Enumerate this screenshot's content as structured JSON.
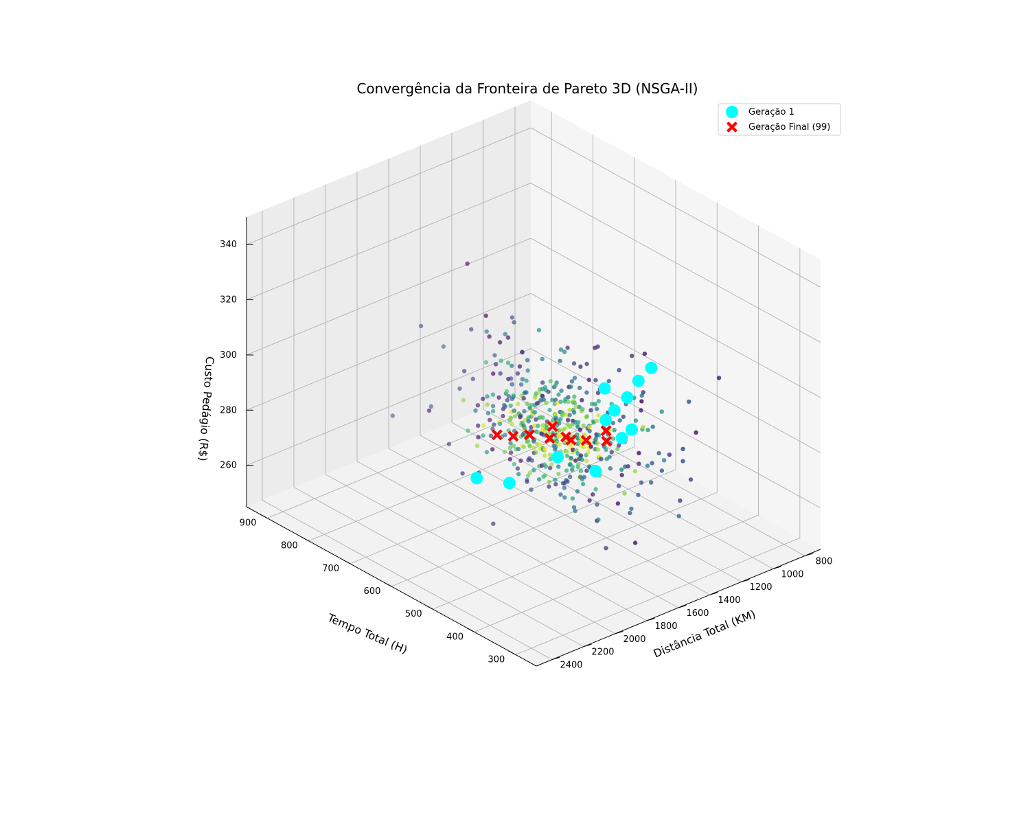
{
  "chart_data": {
    "type": "scatter",
    "projection": "3d",
    "title": "Convergência da Fronteira de Pareto 3D (NSGA-II)",
    "xlabel": "Distância Total (KM)",
    "ylabel": "Tempo Total (H)",
    "zlabel": "Custo Pedágio (R$)",
    "xlim": [
      700,
      2500
    ],
    "ylim": [
      250,
      950
    ],
    "zlim": [
      245,
      350
    ],
    "x_ticks": [
      "800",
      "1000",
      "1200",
      "1400",
      "1600",
      "1800",
      "2000",
      "2200",
      "2400"
    ],
    "y_ticks": [
      "300",
      "400",
      "500",
      "600",
      "700",
      "800",
      "900"
    ],
    "z_ticks": [
      "260",
      "280",
      "300",
      "320",
      "340"
    ],
    "grid": true,
    "legend": {
      "placement": "top-right",
      "entries": [
        "Geração 1",
        "Geração Final (99)"
      ]
    },
    "intermediate_generations": {
      "count": 520,
      "colormap": "viridis",
      "seed": 42,
      "x_center": 1550,
      "x_spread": 280,
      "y_center": 560,
      "y_spread": 110,
      "z_center": 281,
      "z_spread": 14
    },
    "series": [
      {
        "name": "Geração 1",
        "color": "#00ffff",
        "marker": "circle",
        "points": [
          {
            "x": 1300,
            "y": 430,
            "z": 310
          },
          {
            "x": 1400,
            "y": 450,
            "z": 300
          },
          {
            "x": 1250,
            "y": 480,
            "z": 300
          },
          {
            "x": 1450,
            "y": 420,
            "z": 292
          },
          {
            "x": 1350,
            "y": 500,
            "z": 290
          },
          {
            "x": 1300,
            "y": 540,
            "z": 282
          },
          {
            "x": 1150,
            "y": 600,
            "z": 285
          },
          {
            "x": 1600,
            "y": 450,
            "z": 278
          },
          {
            "x": 1500,
            "y": 580,
            "z": 270
          },
          {
            "x": 1700,
            "y": 620,
            "z": 262
          },
          {
            "x": 1750,
            "y": 680,
            "z": 260
          },
          {
            "x": 1250,
            "y": 520,
            "z": 276
          }
        ]
      },
      {
        "name": "Geração Final (99)",
        "color": "#ff0000",
        "marker": "x",
        "points": [
          {
            "x": 1400,
            "y": 500,
            "z": 280
          },
          {
            "x": 1450,
            "y": 530,
            "z": 279
          },
          {
            "x": 1500,
            "y": 560,
            "z": 279
          },
          {
            "x": 1550,
            "y": 580,
            "z": 278
          },
          {
            "x": 1600,
            "y": 610,
            "z": 278
          },
          {
            "x": 1650,
            "y": 630,
            "z": 277
          },
          {
            "x": 1700,
            "y": 650,
            "z": 277
          },
          {
            "x": 1520,
            "y": 540,
            "z": 280
          },
          {
            "x": 1350,
            "y": 520,
            "z": 281
          },
          {
            "x": 1480,
            "y": 600,
            "z": 279
          }
        ]
      }
    ]
  }
}
